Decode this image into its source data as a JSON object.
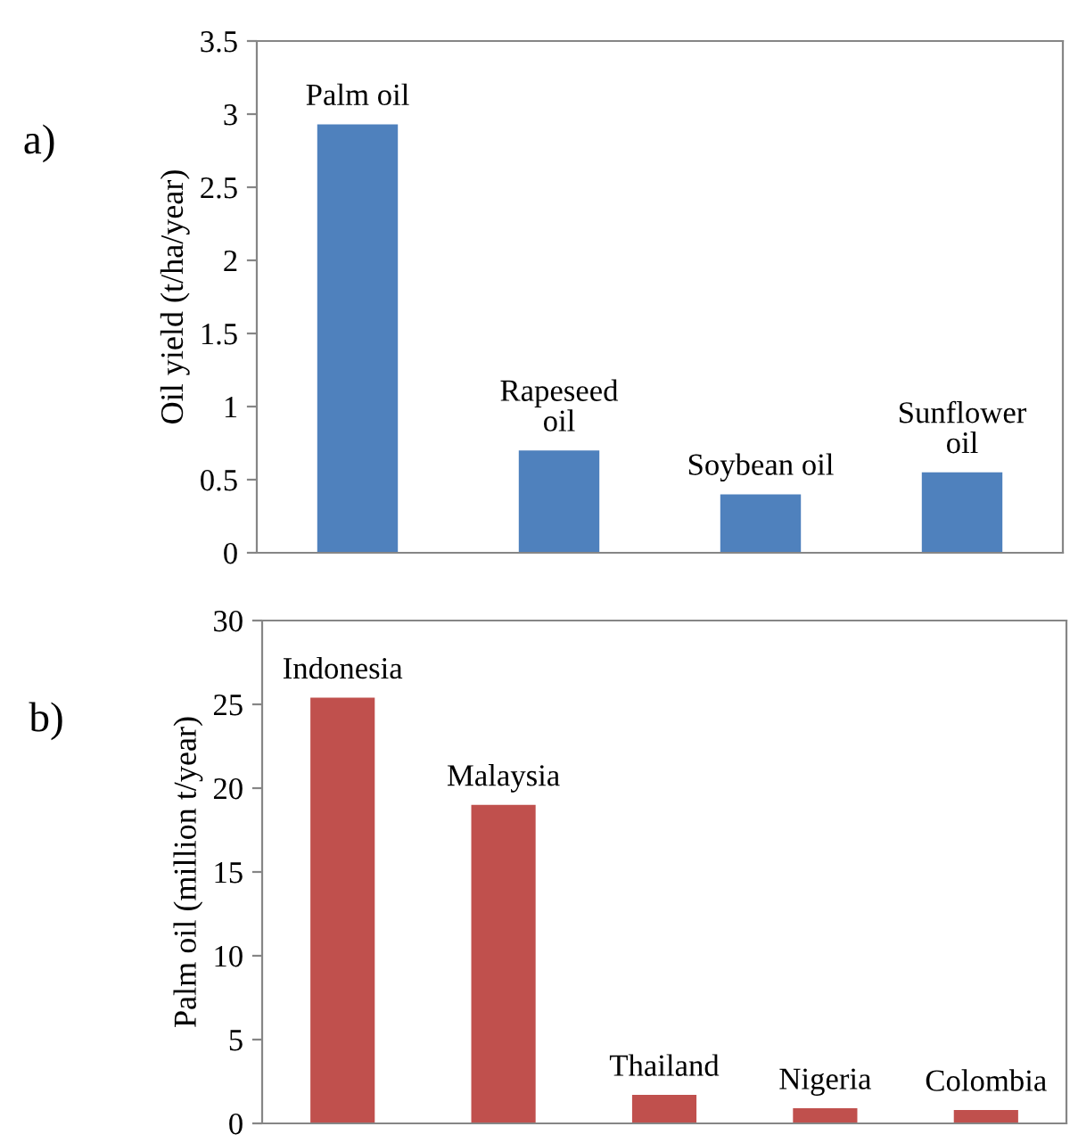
{
  "chart_data": [
    {
      "type": "bar",
      "title": "a)",
      "ylabel": "Oil yield (t/ha/year)",
      "categories": [
        "Palm oil",
        "Rapeseed\noil",
        "Soybean oil",
        "Sunflower\noil"
      ],
      "values": [
        2.93,
        0.7,
        0.4,
        0.55
      ],
      "color": "#4f81bd",
      "ylim": [
        0,
        3.5
      ],
      "yticks": [
        0,
        0.5,
        1,
        1.5,
        2,
        2.5,
        3,
        3.5
      ],
      "grid": false
    },
    {
      "type": "bar",
      "title": "b)",
      "ylabel": "Palm oil (million t/year)",
      "categories": [
        "Indonesia",
        "Malaysia",
        "Thailand",
        "Nigeria",
        "Colombia"
      ],
      "values": [
        25.4,
        19.0,
        1.7,
        0.9,
        0.8
      ],
      "color": "#c0504d",
      "ylim": [
        0,
        30
      ],
      "yticks": [
        0,
        5,
        10,
        15,
        20,
        25,
        30
      ],
      "grid": false
    }
  ]
}
